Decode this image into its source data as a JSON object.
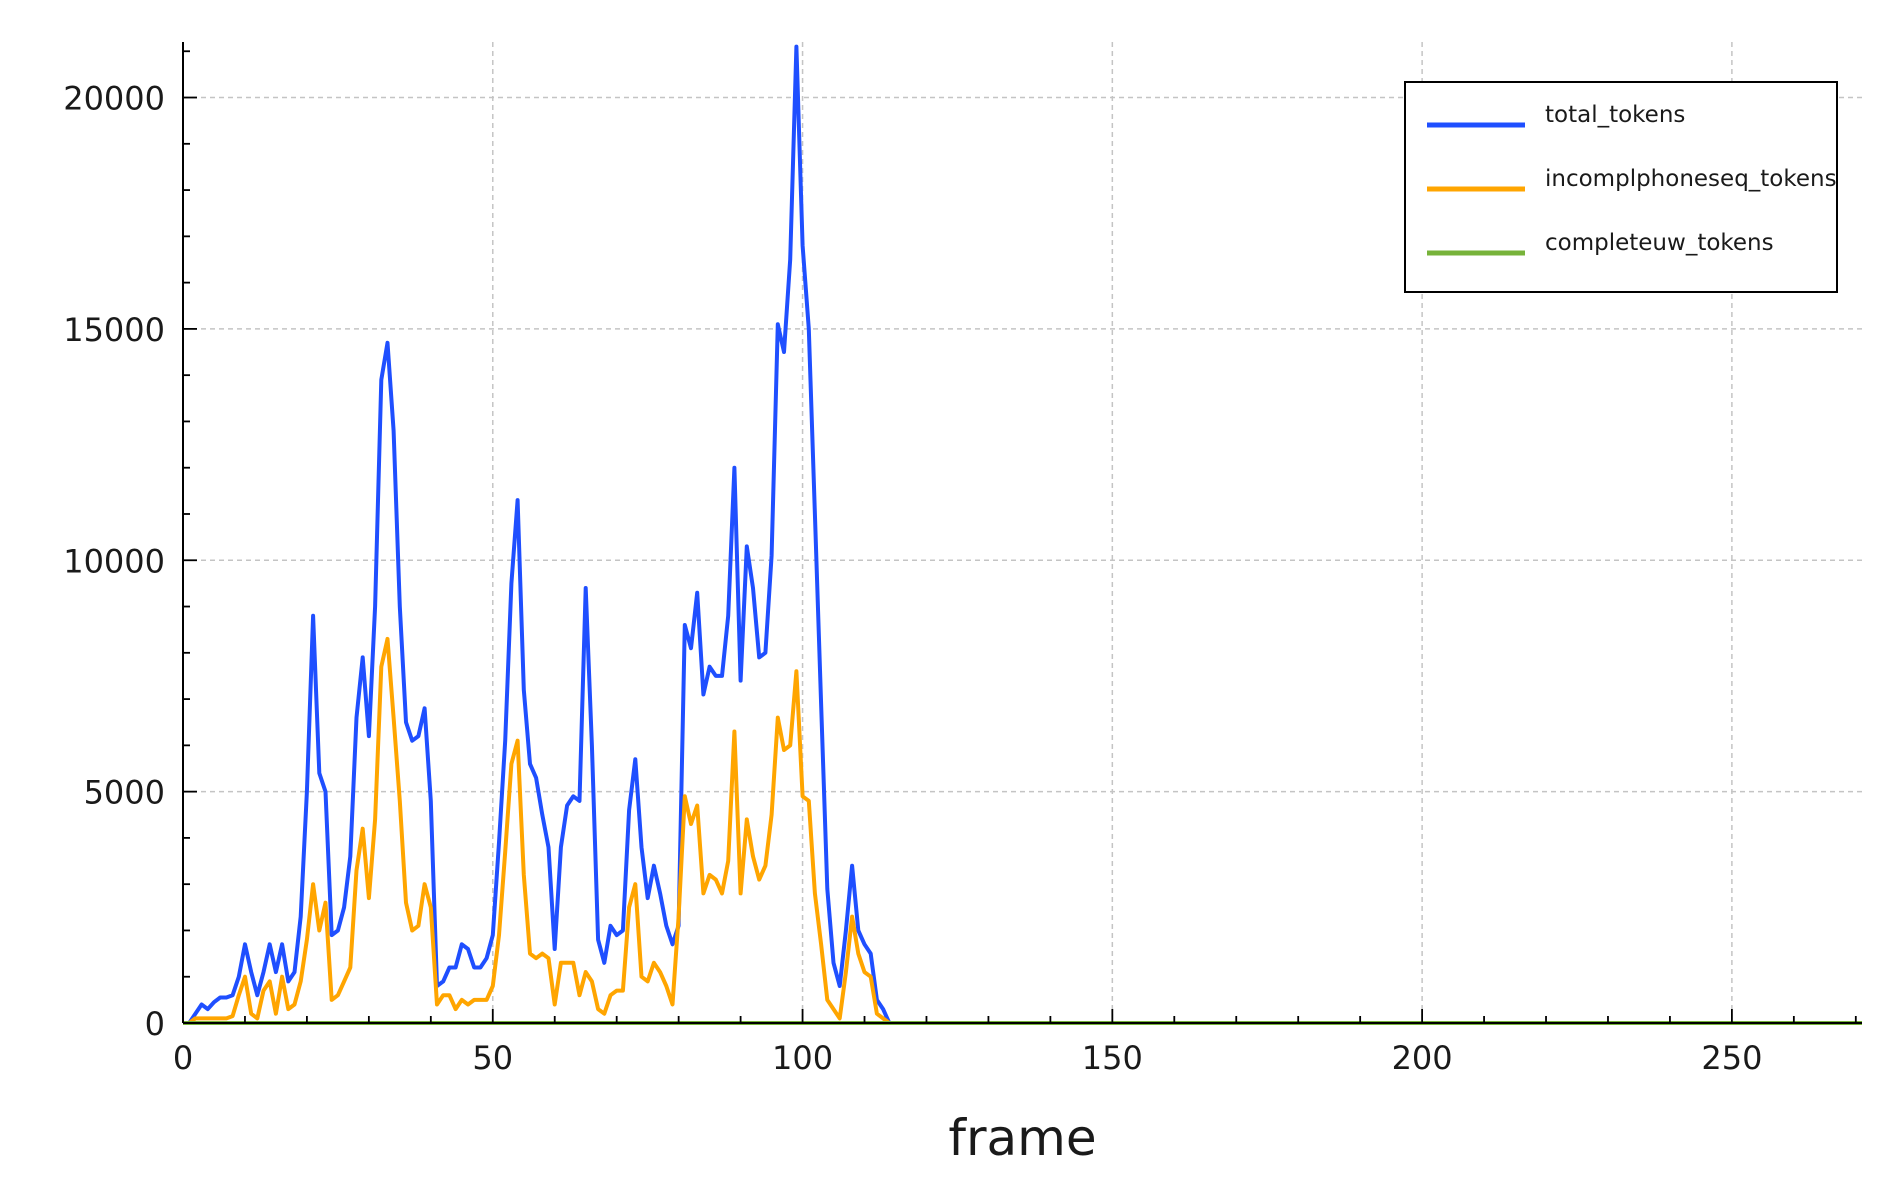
{
  "chart_data": {
    "type": "line",
    "title": "",
    "xlabel": "frame",
    "ylabel": "",
    "xlim": [
      0,
      271
    ],
    "ylim": [
      0,
      21200
    ],
    "xticks": [
      0,
      50,
      100,
      150,
      200,
      250
    ],
    "yticks": [
      0,
      5000,
      10000,
      15000,
      20000
    ],
    "grid": true,
    "legend_position": "top-right",
    "series": [
      {
        "name": "total_tokens",
        "color": "#1f4fff",
        "x": [
          1,
          2,
          3,
          4,
          5,
          6,
          7,
          8,
          9,
          10,
          11,
          12,
          13,
          14,
          15,
          16,
          17,
          18,
          19,
          20,
          21,
          22,
          23,
          24,
          25,
          26,
          27,
          28,
          29,
          30,
          31,
          32,
          33,
          34,
          35,
          36,
          37,
          38,
          39,
          40,
          41,
          42,
          43,
          44,
          45,
          46,
          47,
          48,
          49,
          50,
          51,
          52,
          53,
          54,
          55,
          56,
          57,
          58,
          59,
          60,
          61,
          62,
          63,
          64,
          65,
          66,
          67,
          68,
          69,
          70,
          71,
          72,
          73,
          74,
          75,
          76,
          77,
          78,
          79,
          80,
          81,
          82,
          83,
          84,
          85,
          86,
          87,
          88,
          89,
          90,
          91,
          92,
          93,
          94,
          95,
          96,
          97,
          98,
          99,
          100,
          101,
          102,
          103,
          104,
          105,
          106,
          107,
          108,
          109,
          110,
          111,
          112,
          113,
          114,
          115,
          120,
          150,
          200,
          250,
          271
        ],
        "y": [
          0,
          200,
          400,
          300,
          450,
          550,
          550,
          600,
          1000,
          1700,
          1100,
          600,
          1100,
          1700,
          1100,
          1700,
          900,
          1100,
          2300,
          5000,
          8800,
          5400,
          5000,
          1900,
          2000,
          2500,
          3600,
          6600,
          7900,
          6200,
          9000,
          13900,
          14700,
          12800,
          9000,
          6500,
          6100,
          6200,
          6800,
          4800,
          800,
          900,
          1200,
          1200,
          1700,
          1600,
          1200,
          1200,
          1400,
          1900,
          3900,
          6100,
          9500,
          11300,
          7200,
          5600,
          5300,
          4500,
          3800,
          1600,
          3800,
          4700,
          4900,
          4800,
          9400,
          6000,
          1800,
          1300,
          2100,
          1900,
          2000,
          4600,
          5700,
          3800,
          2700,
          3400,
          2800,
          2100,
          1700,
          2100,
          8600,
          8100,
          9300,
          7100,
          7700,
          7500,
          7500,
          8800,
          12000,
          7400,
          10300,
          9400,
          7900,
          8000,
          10100,
          15100,
          14500,
          16500,
          21100,
          16800,
          15000,
          11000,
          6900,
          2900,
          1300,
          800,
          2000,
          3400,
          2000,
          1700,
          1500,
          500,
          300,
          0,
          0,
          0,
          0,
          0,
          0,
          0
        ]
      },
      {
        "name": "incomplphoneseq_tokens",
        "color": "#ffa500",
        "x": [
          1,
          2,
          3,
          4,
          5,
          6,
          7,
          8,
          9,
          10,
          11,
          12,
          13,
          14,
          15,
          16,
          17,
          18,
          19,
          20,
          21,
          22,
          23,
          24,
          25,
          26,
          27,
          28,
          29,
          30,
          31,
          32,
          33,
          34,
          35,
          36,
          37,
          38,
          39,
          40,
          41,
          42,
          43,
          44,
          45,
          46,
          47,
          48,
          49,
          50,
          51,
          52,
          53,
          54,
          55,
          56,
          57,
          58,
          59,
          60,
          61,
          62,
          63,
          64,
          65,
          66,
          67,
          68,
          69,
          70,
          71,
          72,
          73,
          74,
          75,
          76,
          77,
          78,
          79,
          80,
          81,
          82,
          83,
          84,
          85,
          86,
          87,
          88,
          89,
          90,
          91,
          92,
          93,
          94,
          95,
          96,
          97,
          98,
          99,
          100,
          101,
          102,
          103,
          104,
          105,
          106,
          107,
          108,
          109,
          110,
          111,
          112,
          113,
          114,
          115,
          120,
          150,
          200,
          250,
          271
        ],
        "y": [
          0,
          100,
          100,
          100,
          100,
          100,
          100,
          150,
          600,
          1000,
          200,
          100,
          700,
          900,
          200,
          1000,
          300,
          400,
          900,
          1800,
          3000,
          2000,
          2600,
          500,
          600,
          900,
          1200,
          3300,
          4200,
          2700,
          4400,
          7700,
          8300,
          6600,
          4800,
          2600,
          2000,
          2100,
          3000,
          2500,
          400,
          600,
          600,
          300,
          500,
          400,
          500,
          500,
          500,
          800,
          1900,
          3700,
          5600,
          6100,
          3200,
          1500,
          1400,
          1500,
          1400,
          400,
          1300,
          1300,
          1300,
          600,
          1100,
          900,
          300,
          200,
          600,
          700,
          700,
          2500,
          3000,
          1000,
          900,
          1300,
          1100,
          800,
          400,
          2300,
          4900,
          4300,
          4700,
          2800,
          3200,
          3100,
          2800,
          3500,
          6300,
          2800,
          4400,
          3600,
          3100,
          3400,
          4500,
          6600,
          5900,
          6000,
          7600,
          4900,
          4800,
          2800,
          1700,
          500,
          300,
          100,
          1100,
          2300,
          1500,
          1100,
          1000,
          200,
          100,
          0,
          0,
          0,
          0,
          0,
          0,
          0
        ]
      },
      {
        "name": "completeuw_tokens",
        "color": "#77b33a",
        "x": [
          0,
          271
        ],
        "y": [
          0,
          0
        ]
      }
    ]
  }
}
